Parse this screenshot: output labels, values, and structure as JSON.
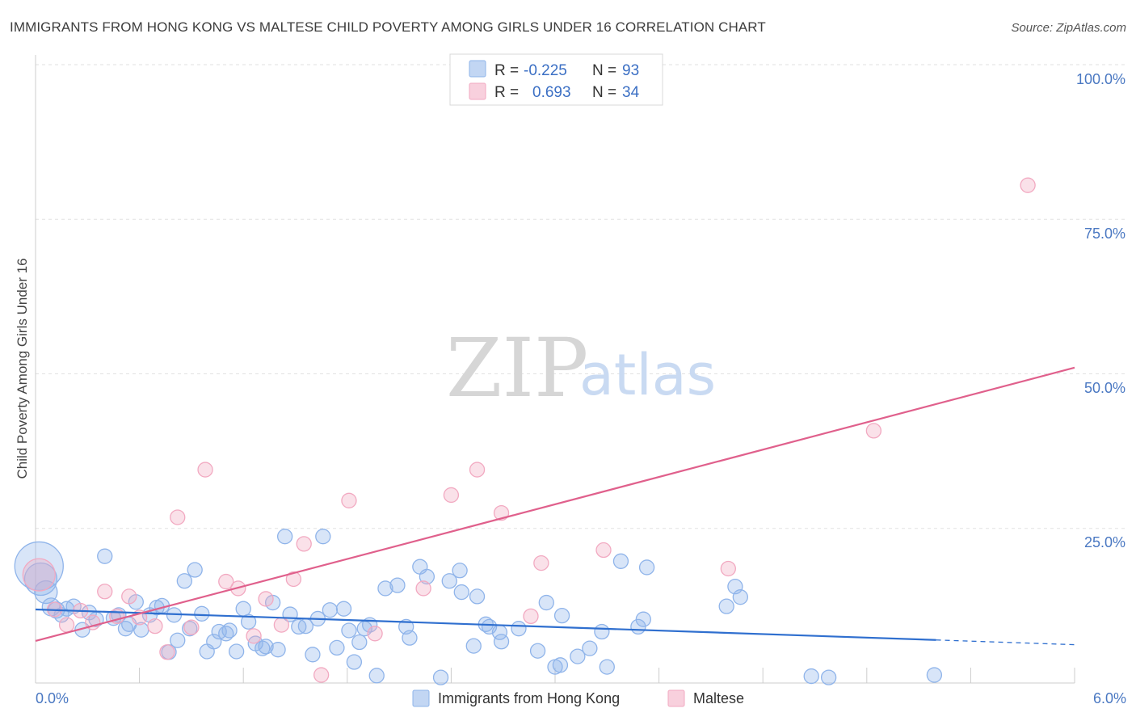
{
  "title": "IMMIGRANTS FROM HONG KONG VS MALTESE CHILD POVERTY AMONG GIRLS UNDER 16 CORRELATION CHART",
  "source": "Source: ZipAtlas.com",
  "watermark": {
    "zip": "ZIP",
    "atlas": "atlas"
  },
  "legend_top": [
    {
      "r_label": "R =",
      "r_value": "-0.225",
      "n_label": "N =",
      "n_value": "93",
      "color": "#8fb4ea"
    },
    {
      "r_label": "R =",
      "r_value": "0.693",
      "n_label": "N =",
      "n_value": "34",
      "color": "#f2a9c1"
    }
  ],
  "chart_data": {
    "type": "scatter",
    "title": "IMMIGRANTS FROM HONG KONG VS MALTESE CHILD POVERTY AMONG GIRLS UNDER 16 CORRELATION CHART",
    "xlabel": "",
    "ylabel": "Child Poverty Among Girls Under 16",
    "xlim": [
      0,
      6
    ],
    "ylim": [
      0,
      100
    ],
    "x_tick_labels": [
      "0.0%",
      "6.0%"
    ],
    "y_tick_labels": [
      "25.0%",
      "50.0%",
      "75.0%",
      "100.0%"
    ],
    "y_ticks": [
      25,
      50,
      75,
      100
    ],
    "grid": true,
    "legend_position": "bottom",
    "series": [
      {
        "name": "Immigrants from Hong Kong",
        "color": "#8fb4ea",
        "line_color": "#2f6fcf",
        "trend": {
          "x0": 0,
          "y0": 11.9,
          "x1": 6,
          "y1": 6.2,
          "solid_until": 5.2
        },
        "points": [
          [
            0.02,
            18.9,
            30
          ],
          [
            0.03,
            16.8,
            20
          ],
          [
            0.06,
            14.7,
            14
          ],
          [
            0.09,
            12.3,
            11
          ],
          [
            0.12,
            11.8,
            10
          ],
          [
            0.15,
            11.0,
            9
          ],
          [
            0.18,
            12.0,
            9
          ],
          [
            0.22,
            12.4,
            9
          ],
          [
            0.27,
            8.6,
            9
          ],
          [
            0.31,
            11.4,
            9
          ],
          [
            0.35,
            10.3,
            9
          ],
          [
            0.4,
            20.5,
            9
          ],
          [
            0.45,
            10.5,
            9
          ],
          [
            0.48,
            11.0,
            9
          ],
          [
            0.52,
            8.8,
            9
          ],
          [
            0.54,
            9.5,
            9
          ],
          [
            0.58,
            13.1,
            9
          ],
          [
            0.61,
            8.6,
            9
          ],
          [
            0.66,
            11.0,
            9
          ],
          [
            0.7,
            12.2,
            9
          ],
          [
            0.73,
            12.5,
            9
          ],
          [
            0.77,
            5.0,
            9
          ],
          [
            0.8,
            11.0,
            9
          ],
          [
            0.82,
            6.9,
            9
          ],
          [
            0.86,
            16.5,
            9
          ],
          [
            0.89,
            8.8,
            9
          ],
          [
            0.92,
            18.3,
            9
          ],
          [
            0.96,
            11.2,
            9
          ],
          [
            0.99,
            5.1,
            9
          ],
          [
            1.03,
            6.7,
            9
          ],
          [
            1.06,
            8.3,
            9
          ],
          [
            1.1,
            8.0,
            9
          ],
          [
            1.12,
            8.5,
            9
          ],
          [
            1.16,
            5.1,
            9
          ],
          [
            1.2,
            12.0,
            9
          ],
          [
            1.23,
            9.9,
            9
          ],
          [
            1.27,
            6.4,
            9
          ],
          [
            1.31,
            5.6,
            9
          ],
          [
            1.33,
            5.9,
            9
          ],
          [
            1.37,
            13.0,
            9
          ],
          [
            1.4,
            5.4,
            9
          ],
          [
            1.44,
            23.7,
            9
          ],
          [
            1.47,
            11.1,
            9
          ],
          [
            1.52,
            9.1,
            9
          ],
          [
            1.56,
            9.2,
            9
          ],
          [
            1.6,
            4.6,
            9
          ],
          [
            1.63,
            10.4,
            9
          ],
          [
            1.66,
            23.7,
            9
          ],
          [
            1.7,
            11.8,
            9
          ],
          [
            1.74,
            5.7,
            9
          ],
          [
            1.78,
            12.0,
            9
          ],
          [
            1.81,
            8.5,
            9
          ],
          [
            1.84,
            3.4,
            9
          ],
          [
            1.87,
            6.6,
            9
          ],
          [
            1.9,
            8.8,
            9
          ],
          [
            1.93,
            9.4,
            9
          ],
          [
            1.97,
            1.2,
            9
          ],
          [
            2.02,
            15.3,
            9
          ],
          [
            2.09,
            15.8,
            9
          ],
          [
            2.14,
            9.1,
            9
          ],
          [
            2.16,
            7.3,
            9
          ],
          [
            2.22,
            18.8,
            9
          ],
          [
            2.26,
            17.2,
            9
          ],
          [
            2.34,
            0.9,
            9
          ],
          [
            2.39,
            16.5,
            9
          ],
          [
            2.45,
            18.2,
            9
          ],
          [
            2.46,
            14.7,
            9
          ],
          [
            2.53,
            6.0,
            9
          ],
          [
            2.55,
            14.0,
            9
          ],
          [
            2.6,
            9.5,
            9
          ],
          [
            2.62,
            9.1,
            9
          ],
          [
            2.68,
            8.2,
            9
          ],
          [
            2.69,
            6.7,
            9
          ],
          [
            2.79,
            8.8,
            9
          ],
          [
            2.9,
            5.2,
            9
          ],
          [
            2.95,
            13.0,
            9
          ],
          [
            3.0,
            2.6,
            9
          ],
          [
            3.03,
            2.9,
            9
          ],
          [
            3.04,
            10.9,
            9
          ],
          [
            3.13,
            4.3,
            9
          ],
          [
            3.2,
            5.6,
            9
          ],
          [
            3.27,
            8.3,
            9
          ],
          [
            3.3,
            2.6,
            9
          ],
          [
            3.38,
            19.7,
            9
          ],
          [
            3.48,
            9.1,
            9
          ],
          [
            3.51,
            10.3,
            9
          ],
          [
            3.53,
            18.7,
            9
          ],
          [
            3.99,
            12.4,
            9
          ],
          [
            4.04,
            15.6,
            9
          ],
          [
            4.07,
            13.9,
            9
          ],
          [
            4.48,
            1.1,
            9
          ],
          [
            4.58,
            0.9,
            9
          ],
          [
            5.19,
            1.3,
            9
          ]
        ]
      },
      {
        "name": "Maltese",
        "color": "#f2a9c1",
        "line_color": "#e0608c",
        "trend": {
          "x0": 0,
          "y0": 6.8,
          "x1": 6,
          "y1": 51.0,
          "solid_until": 6.0
        },
        "points": [
          [
            0.02,
            17.5,
            20
          ],
          [
            0.11,
            11.9,
            9
          ],
          [
            0.18,
            9.4,
            9
          ],
          [
            0.26,
            11.7,
            9
          ],
          [
            0.33,
            9.8,
            9
          ],
          [
            0.4,
            14.8,
            9
          ],
          [
            0.47,
            10.8,
            9
          ],
          [
            0.54,
            14.0,
            9
          ],
          [
            0.6,
            10.6,
            9
          ],
          [
            0.69,
            9.2,
            9
          ],
          [
            0.76,
            5.0,
            9
          ],
          [
            0.82,
            26.8,
            9
          ],
          [
            0.9,
            9.0,
            9
          ],
          [
            0.98,
            34.5,
            9
          ],
          [
            1.1,
            16.4,
            9
          ],
          [
            1.17,
            15.3,
            9
          ],
          [
            1.26,
            7.6,
            9
          ],
          [
            1.33,
            13.6,
            9
          ],
          [
            1.42,
            9.4,
            9
          ],
          [
            1.49,
            16.8,
            9
          ],
          [
            1.55,
            22.5,
            9
          ],
          [
            1.65,
            1.3,
            9
          ],
          [
            1.81,
            29.5,
            9
          ],
          [
            1.96,
            8.0,
            9
          ],
          [
            2.24,
            15.3,
            9
          ],
          [
            2.4,
            30.4,
            9
          ],
          [
            2.55,
            34.5,
            9
          ],
          [
            2.69,
            27.5,
            9
          ],
          [
            2.86,
            10.8,
            9
          ],
          [
            2.92,
            19.4,
            9
          ],
          [
            3.28,
            21.5,
            9
          ],
          [
            4.0,
            18.5,
            9
          ],
          [
            4.84,
            40.8,
            9
          ],
          [
            5.73,
            80.5,
            9
          ]
        ]
      }
    ]
  }
}
